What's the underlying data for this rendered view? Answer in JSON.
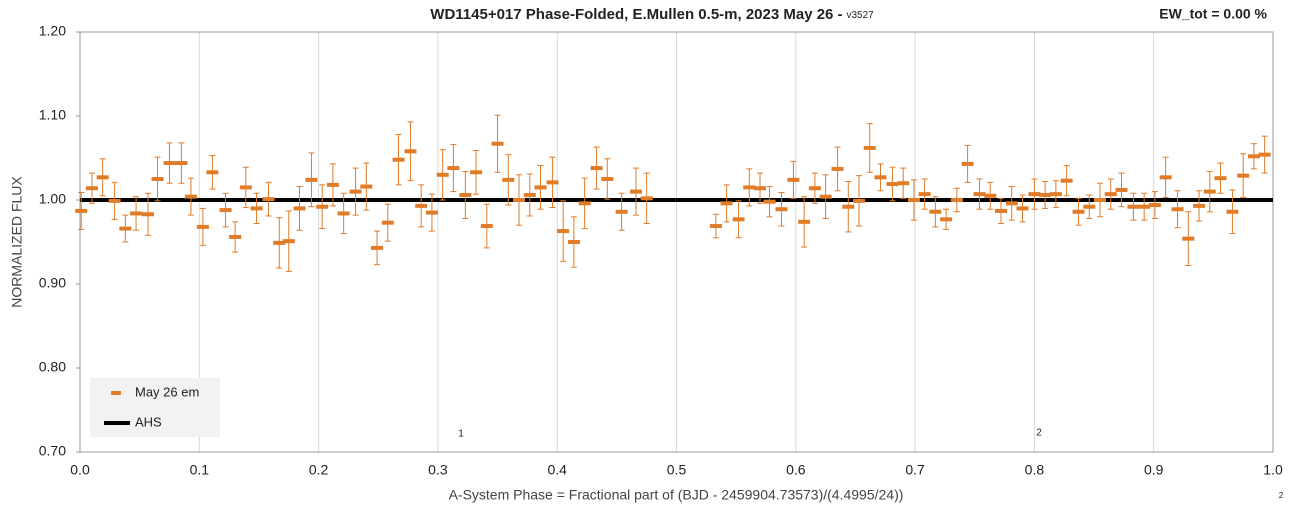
{
  "chart_data": {
    "type": "scatter",
    "title": "WD1145+017 Phase-Folded, E.Mullen 0.5-m, 2023 May 26 -",
    "version": "v3527",
    "ew_label": "EW_tot = 0.00 %",
    "x_label": "A-System Phase = Fractional part of (BJD - 2459904.73573)/(4.4995/24))",
    "y_label": "NORMALIZED FLUX",
    "annotations": [
      "1",
      "2",
      "2"
    ],
    "xlim": [
      0,
      1
    ],
    "ylim": [
      0.7,
      1.2
    ],
    "xticks": [
      {
        "value": 0,
        "label": "0.0"
      },
      0.1,
      0.2,
      0.3,
      0.4,
      0.5,
      0.6,
      0.7,
      0.8,
      0.9,
      {
        "value": 1,
        "label": "1.0"
      }
    ],
    "yticks": [
      {
        "value": 0.7,
        "label": "0.70"
      },
      {
        "value": 0.8,
        "label": "0.80"
      },
      {
        "value": 0.9,
        "label": "0.90"
      },
      {
        "value": 1.0,
        "label": "1.00"
      },
      {
        "value": 1.1,
        "label": "1.10"
      },
      {
        "value": 1.2,
        "label": "1.20"
      }
    ],
    "grid": true,
    "legend": "lower left",
    "series": [
      {
        "name": "May 26 em",
        "color": "#e07b28",
        "x": [
          0.001,
          0.01,
          0.019,
          0.029,
          0.038,
          0.047,
          0.057,
          0.065,
          0.075,
          0.085,
          0.093,
          0.103,
          0.111,
          0.122,
          0.13,
          0.139,
          0.148,
          0.158,
          0.167,
          0.175,
          0.184,
          0.194,
          0.203,
          0.212,
          0.221,
          0.231,
          0.24,
          0.249,
          0.258,
          0.267,
          0.277,
          0.286,
          0.295,
          0.304,
          0.313,
          0.323,
          0.332,
          0.341,
          0.35,
          0.359,
          0.368,
          0.377,
          0.386,
          0.396,
          0.405,
          0.414,
          0.423,
          0.433,
          0.442,
          0.454,
          0.466,
          0.475,
          0.533,
          0.542,
          0.552,
          0.561,
          0.57,
          0.578,
          0.588,
          0.598,
          0.607,
          0.616,
          0.625,
          0.635,
          0.644,
          0.653,
          0.662,
          0.671,
          0.681,
          0.69,
          0.699,
          0.708,
          0.717,
          0.726,
          0.735,
          0.744,
          0.754,
          0.763,
          0.772,
          0.781,
          0.79,
          0.8,
          0.809,
          0.818,
          0.827,
          0.837,
          0.846,
          0.855,
          0.864,
          0.873,
          0.883,
          0.892,
          0.901,
          0.91,
          0.92,
          0.929,
          0.938,
          0.947,
          0.956,
          0.966,
          0.975,
          0.984,
          0.993
        ],
        "values": [
          0.987,
          1.014,
          1.027,
          0.999,
          0.966,
          0.984,
          0.983,
          1.025,
          1.044,
          1.044,
          1.004,
          0.968,
          1.033,
          0.988,
          0.956,
          1.015,
          0.99,
          1.001,
          0.949,
          0.951,
          0.99,
          1.024,
          0.992,
          1.018,
          0.984,
          1.01,
          1.016,
          0.943,
          0.973,
          1.048,
          1.058,
          0.993,
          0.985,
          1.03,
          1.038,
          1.006,
          1.033,
          0.969,
          1.067,
          1.024,
          1.0,
          1.006,
          1.015,
          1.021,
          0.963,
          0.95,
          0.996,
          1.038,
          1.025,
          0.986,
          1.01,
          1.002,
          0.969,
          0.996,
          0.977,
          1.015,
          1.014,
          0.998,
          0.989,
          1.024,
          0.974,
          1.014,
          1.004,
          1.037,
          0.992,
          0.999,
          1.062,
          1.027,
          1.019,
          1.02,
          1.0,
          1.007,
          0.986,
          0.977,
          1.0,
          1.043,
          1.007,
          1.005,
          0.987,
          0.996,
          0.99,
          1.007,
          1.006,
          1.007,
          1.023,
          0.986,
          0.992,
          1.0,
          1.007,
          1.012,
          0.992,
          0.992,
          0.994,
          1.027,
          0.989,
          0.954,
          0.993,
          1.01,
          1.026,
          0.986,
          1.029,
          1.052,
          1.054
        ],
        "errors": [
          0.022,
          0.018,
          0.022,
          0.022,
          0.016,
          0.02,
          0.025,
          0.026,
          0.024,
          0.024,
          0.022,
          0.022,
          0.02,
          0.02,
          0.018,
          0.024,
          0.018,
          0.02,
          0.03,
          0.036,
          0.026,
          0.032,
          0.026,
          0.025,
          0.024,
          0.028,
          0.028,
          0.02,
          0.022,
          0.03,
          0.035,
          0.025,
          0.022,
          0.03,
          0.028,
          0.028,
          0.026,
          0.026,
          0.034,
          0.03,
          0.03,
          0.025,
          0.026,
          0.03,
          0.036,
          0.03,
          0.03,
          0.025,
          0.024,
          0.022,
          0.028,
          0.03,
          0.014,
          0.022,
          0.022,
          0.022,
          0.018,
          0.018,
          0.02,
          0.022,
          0.03,
          0.018,
          0.026,
          0.026,
          0.03,
          0.03,
          0.029,
          0.016,
          0.02,
          0.018,
          0.024,
          0.018,
          0.018,
          0.012,
          0.014,
          0.022,
          0.018,
          0.016,
          0.015,
          0.02,
          0.016,
          0.018,
          0.016,
          0.016,
          0.018,
          0.016,
          0.014,
          0.02,
          0.018,
          0.02,
          0.016,
          0.016,
          0.016,
          0.024,
          0.022,
          0.032,
          0.018,
          0.024,
          0.018,
          0.026,
          0.026,
          0.015,
          0.022
        ]
      },
      {
        "name": "AHS",
        "color": "#000000",
        "x": [
          0,
          1
        ],
        "values": [
          1.0,
          1.0
        ]
      }
    ]
  }
}
